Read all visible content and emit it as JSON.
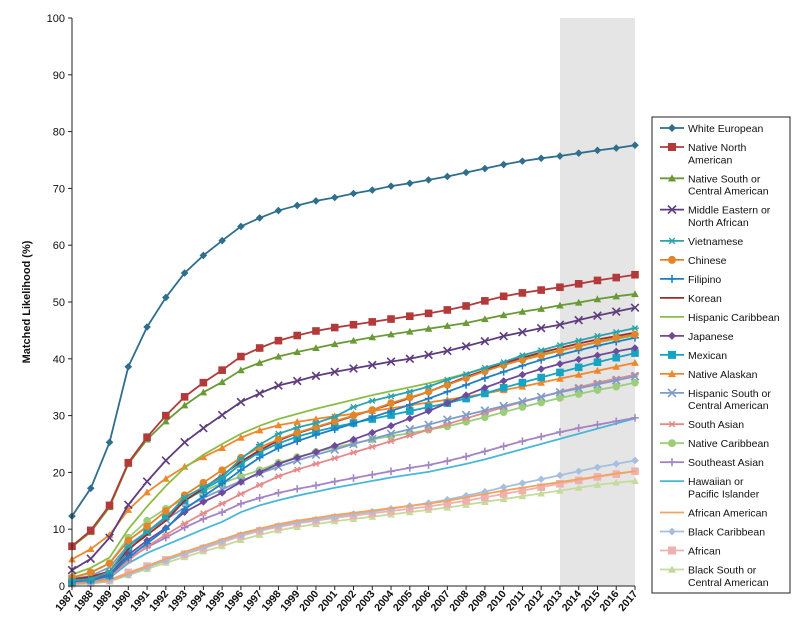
{
  "chart_data": {
    "type": "line",
    "title": "",
    "ylabel": "Matched Likelihood (%)",
    "xlabel": "",
    "ylim": [
      0,
      100
    ],
    "yticks": [
      0,
      10,
      20,
      30,
      40,
      50,
      60,
      70,
      80,
      90,
      100
    ],
    "highlight_range": [
      2013,
      2017
    ],
    "categories": [
      "1987",
      "1988",
      "1989",
      "1990",
      "1991",
      "1992",
      "1993",
      "1994",
      "1995",
      "1996",
      "1997",
      "1998",
      "1999",
      "2000",
      "2001",
      "2002",
      "2003",
      "2004",
      "2005",
      "2006",
      "2007",
      "2008",
      "2009",
      "2010",
      "2011",
      "2012",
      "2013",
      "2014",
      "2015",
      "2016",
      "2017"
    ],
    "series": [
      {
        "name": "White European",
        "label_lines": [
          "White European"
        ],
        "color": "#2f6e8c",
        "marker": "diamond",
        "values": [
          12.3,
          17.2,
          25.3,
          38.6,
          45.6,
          50.8,
          55.1,
          58.2,
          60.8,
          63.3,
          64.8,
          66.1,
          67.0,
          67.8,
          68.4,
          69.1,
          69.7,
          70.4,
          70.9,
          71.5,
          72.1,
          72.8,
          73.5,
          74.2,
          74.8,
          75.3,
          75.7,
          76.2,
          76.7,
          77.1,
          77.6
        ]
      },
      {
        "name": "Native North American",
        "label_lines": [
          "Native North",
          "American"
        ],
        "color": "#b23a3a",
        "marker": "square",
        "values": [
          7.0,
          9.8,
          14.2,
          21.7,
          26.2,
          30.0,
          33.3,
          35.8,
          38.0,
          40.4,
          41.9,
          43.2,
          44.1,
          44.9,
          45.5,
          46.0,
          46.5,
          47.0,
          47.5,
          48.0,
          48.6,
          49.3,
          50.2,
          51.0,
          51.6,
          52.1,
          52.6,
          53.2,
          53.8,
          54.3,
          54.8
        ]
      },
      {
        "name": "Native South or Central American",
        "label_lines": [
          "Native South or",
          "Central American"
        ],
        "color": "#6a9a36",
        "marker": "triangle",
        "values": [
          6.9,
          9.5,
          13.9,
          21.5,
          25.8,
          29.0,
          31.8,
          34.1,
          35.9,
          38.0,
          39.3,
          40.4,
          41.2,
          41.9,
          42.6,
          43.2,
          43.8,
          44.3,
          44.8,
          45.3,
          45.8,
          46.3,
          47.0,
          47.7,
          48.3,
          48.8,
          49.4,
          49.9,
          50.5,
          51.0,
          51.4
        ]
      },
      {
        "name": "Middle Eastern or North African",
        "label_lines": [
          "Middle Eastern or",
          "North African"
        ],
        "color": "#5e3d7e",
        "marker": "x",
        "values": [
          2.8,
          4.8,
          8.5,
          14.3,
          18.4,
          22.1,
          25.3,
          27.8,
          30.1,
          32.4,
          33.9,
          35.3,
          36.1,
          37.0,
          37.7,
          38.3,
          38.9,
          39.5,
          40.0,
          40.7,
          41.4,
          42.2,
          43.1,
          44.0,
          44.7,
          45.4,
          46.0,
          46.8,
          47.6,
          48.3,
          49.0
        ]
      },
      {
        "name": "Vietnamese",
        "label_lines": [
          "Vietnamese"
        ],
        "color": "#2aa3ad",
        "marker": "star",
        "values": [
          1.0,
          1.2,
          2.5,
          7.0,
          9.5,
          12.0,
          15.6,
          17.4,
          19.2,
          22.4,
          24.9,
          26.8,
          27.9,
          28.7,
          29.8,
          31.5,
          32.6,
          33.4,
          34.2,
          35.1,
          36.3,
          37.3,
          38.4,
          39.4,
          40.6,
          41.5,
          42.4,
          43.2,
          44.0,
          44.7,
          45.4
        ]
      },
      {
        "name": "Chinese",
        "label_lines": [
          "Chinese"
        ],
        "color": "#e3862a",
        "marker": "circle",
        "values": [
          1.5,
          2.4,
          4.0,
          8.0,
          10.5,
          13.2,
          16.0,
          18.2,
          20.4,
          22.6,
          24.4,
          25.8,
          27.0,
          28.0,
          29.0,
          30.0,
          31.0,
          32.2,
          33.2,
          34.2,
          35.4,
          36.6,
          37.8,
          38.9,
          39.8,
          40.6,
          41.4,
          42.2,
          43.0,
          43.7,
          44.3
        ]
      },
      {
        "name": "Filipino",
        "label_lines": [
          "Filipino"
        ],
        "color": "#1f7fc4",
        "marker": "plus",
        "values": [
          0.8,
          1.0,
          1.8,
          5.0,
          7.5,
          10.0,
          13.5,
          15.8,
          18.0,
          20.4,
          22.6,
          24.3,
          25.5,
          26.6,
          27.6,
          28.6,
          29.7,
          30.8,
          31.9,
          33.0,
          34.2,
          35.4,
          36.6,
          37.7,
          38.8,
          39.8,
          40.7,
          41.5,
          42.3,
          43.0,
          43.7
        ]
      },
      {
        "name": "Korean",
        "label_lines": [
          "Korean"
        ],
        "color": "#a32a2a",
        "marker": "none",
        "values": [
          1.2,
          1.6,
          2.6,
          6.5,
          9.0,
          11.5,
          15.0,
          17.2,
          19.5,
          21.9,
          23.9,
          25.6,
          26.9,
          27.9,
          28.9,
          29.9,
          31.0,
          32.0,
          33.1,
          34.2,
          35.5,
          36.8,
          38.0,
          39.2,
          40.2,
          41.1,
          41.9,
          42.7,
          43.4,
          44.0,
          44.6
        ]
      },
      {
        "name": "Hispanic Caribbean",
        "label_lines": [
          "Hispanic Caribbean"
        ],
        "color": "#8bbd47",
        "marker": "none",
        "values": [
          2.0,
          3.2,
          5.0,
          10.0,
          14.0,
          17.6,
          20.8,
          23.1,
          25.0,
          26.8,
          28.2,
          29.4,
          30.3,
          31.2,
          32.0,
          32.8,
          33.6,
          34.3,
          35.0,
          35.7,
          36.5,
          37.4,
          38.4,
          39.3,
          40.1,
          40.8,
          41.5,
          42.2,
          42.9,
          43.5,
          44.1
        ]
      },
      {
        "name": "Japanese",
        "label_lines": [
          "Japanese"
        ],
        "color": "#6f4a9a",
        "marker": "diamond",
        "values": [
          1.0,
          1.3,
          2.0,
          5.5,
          8.0,
          10.2,
          13.0,
          14.8,
          16.4,
          18.3,
          20.0,
          21.5,
          22.6,
          23.6,
          24.7,
          25.8,
          27.0,
          28.2,
          29.5,
          30.8,
          32.2,
          33.6,
          34.9,
          36.1,
          37.2,
          38.2,
          39.1,
          39.9,
          40.6,
          41.3,
          41.9
        ]
      },
      {
        "name": "Mexican",
        "label_lines": [
          "Mexican"
        ],
        "color": "#17a3c2",
        "marker": "square",
        "values": [
          0.8,
          1.1,
          1.9,
          6.2,
          9.5,
          12.2,
          15.0,
          17.0,
          18.8,
          21.5,
          23.6,
          25.1,
          26.3,
          27.2,
          28.0,
          28.7,
          29.4,
          30.1,
          30.8,
          31.5,
          32.2,
          33.0,
          33.9,
          34.9,
          35.8,
          36.7,
          37.6,
          38.5,
          39.4,
          40.2,
          41.0
        ]
      },
      {
        "name": "Native Alaskan",
        "label_lines": [
          "Native Alaskan"
        ],
        "color": "#f0872c",
        "marker": "triangle",
        "values": [
          4.7,
          6.5,
          9.0,
          13.4,
          16.5,
          18.9,
          21.0,
          22.7,
          24.3,
          26.1,
          27.4,
          28.3,
          28.9,
          29.4,
          29.9,
          30.3,
          30.8,
          31.3,
          31.8,
          32.3,
          32.8,
          33.3,
          33.9,
          34.5,
          35.1,
          35.8,
          36.5,
          37.2,
          37.9,
          38.6,
          39.3
        ]
      },
      {
        "name": "Hispanic South or Central American",
        "label_lines": [
          "Hispanic South or",
          "Central American"
        ],
        "color": "#7d9cc9",
        "marker": "x",
        "values": [
          1.2,
          1.8,
          3.3,
          7.2,
          9.6,
          11.7,
          13.8,
          15.5,
          17.0,
          18.5,
          19.8,
          21.0,
          22.1,
          23.1,
          24.0,
          25.0,
          25.9,
          26.8,
          27.6,
          28.4,
          29.3,
          30.1,
          30.9,
          31.7,
          32.5,
          33.3,
          34.1,
          34.8,
          35.5,
          36.2,
          36.9
        ]
      },
      {
        "name": "South Asian",
        "label_lines": [
          "South Asian"
        ],
        "color": "#e48a8a",
        "marker": "star",
        "values": [
          0.5,
          0.8,
          1.5,
          4.5,
          7.0,
          9.0,
          11.0,
          12.8,
          14.5,
          16.2,
          17.8,
          19.3,
          20.5,
          21.5,
          22.5,
          23.5,
          24.5,
          25.5,
          26.5,
          27.5,
          28.5,
          29.5,
          30.5,
          31.5,
          32.4,
          33.3,
          34.2,
          35.0,
          35.8,
          36.5,
          37.2
        ]
      },
      {
        "name": "Native Caribbean",
        "label_lines": [
          "Native Caribbean"
        ],
        "color": "#9ccd78",
        "marker": "circle",
        "values": [
          1.4,
          2.3,
          4.0,
          8.5,
          11.5,
          13.6,
          15.4,
          16.7,
          18.1,
          19.3,
          20.4,
          21.7,
          22.7,
          23.6,
          24.4,
          25.1,
          25.8,
          26.4,
          26.9,
          27.5,
          28.1,
          28.9,
          29.7,
          30.6,
          31.5,
          32.3,
          33.1,
          33.8,
          34.5,
          35.1,
          35.8
        ]
      },
      {
        "name": "Southeast Asian",
        "label_lines": [
          "Southeast Asian"
        ],
        "color": "#a385c4",
        "marker": "plus",
        "values": [
          0.6,
          0.9,
          1.6,
          4.8,
          6.8,
          8.5,
          10.3,
          11.8,
          13.0,
          14.5,
          15.5,
          16.4,
          17.1,
          17.7,
          18.4,
          19.0,
          19.6,
          20.2,
          20.8,
          21.3,
          22.0,
          22.8,
          23.7,
          24.6,
          25.5,
          26.3,
          27.1,
          27.8,
          28.4,
          29.0,
          29.6
        ]
      },
      {
        "name": "Hawaiian or Pacific Islander",
        "label_lines": [
          "Hawaiian or",
          "Pacific Islander"
        ],
        "color": "#4bb6d8",
        "marker": "none",
        "values": [
          0.5,
          0.8,
          1.4,
          4.0,
          5.8,
          7.2,
          8.6,
          10.0,
          11.3,
          13.0,
          14.2,
          15.1,
          15.9,
          16.6,
          17.3,
          17.9,
          18.5,
          19.1,
          19.6,
          20.1,
          20.8,
          21.5,
          22.3,
          23.2,
          24.1,
          25.0,
          25.9,
          26.8,
          27.7,
          28.6,
          29.5
        ]
      },
      {
        "name": "African American",
        "label_lines": [
          "African American"
        ],
        "color": "#f2a35e",
        "marker": "none",
        "values": [
          0.4,
          0.6,
          1.0,
          2.2,
          3.5,
          4.8,
          6.0,
          7.1,
          8.2,
          9.3,
          10.1,
          10.9,
          11.5,
          12.0,
          12.5,
          12.9,
          13.3,
          13.7,
          14.1,
          14.5,
          15.0,
          15.6,
          16.2,
          16.8,
          17.3,
          17.8,
          18.3,
          18.8,
          19.3,
          19.8,
          20.2
        ]
      },
      {
        "name": "Black Caribbean",
        "label_lines": [
          "Black Caribbean"
        ],
        "color": "#a6bfdf",
        "marker": "diamond",
        "values": [
          0.3,
          0.5,
          0.9,
          2.0,
          3.3,
          4.5,
          5.7,
          6.8,
          7.9,
          9.0,
          9.9,
          10.6,
          11.2,
          11.7,
          12.2,
          12.7,
          13.1,
          13.6,
          14.1,
          14.6,
          15.2,
          15.9,
          16.6,
          17.4,
          18.1,
          18.8,
          19.5,
          20.2,
          20.9,
          21.5,
          22.1
        ]
      },
      {
        "name": "African",
        "label_lines": [
          "African"
        ],
        "color": "#f0b0ae",
        "marker": "square",
        "values": [
          0.4,
          0.6,
          1.1,
          2.4,
          3.5,
          4.6,
          5.6,
          6.6,
          7.7,
          8.8,
          9.7,
          10.4,
          11.0,
          11.5,
          12.0,
          12.4,
          12.8,
          13.2,
          13.6,
          14.0,
          14.5,
          15.0,
          15.6,
          16.2,
          16.8,
          17.4,
          18.0,
          18.6,
          19.2,
          19.7,
          20.2
        ]
      },
      {
        "name": "Black South or Central American",
        "label_lines": [
          "Black South or",
          "Central American"
        ],
        "color": "#c3dc9c",
        "marker": "triangle",
        "values": [
          0.3,
          0.4,
          0.8,
          1.9,
          3.0,
          4.1,
          5.1,
          6.1,
          7.0,
          8.1,
          9.0,
          9.8,
          10.4,
          10.9,
          11.4,
          11.8,
          12.2,
          12.6,
          13.0,
          13.4,
          13.8,
          14.3,
          14.8,
          15.3,
          15.8,
          16.3,
          16.8,
          17.3,
          17.8,
          18.2,
          18.5
        ]
      }
    ]
  }
}
